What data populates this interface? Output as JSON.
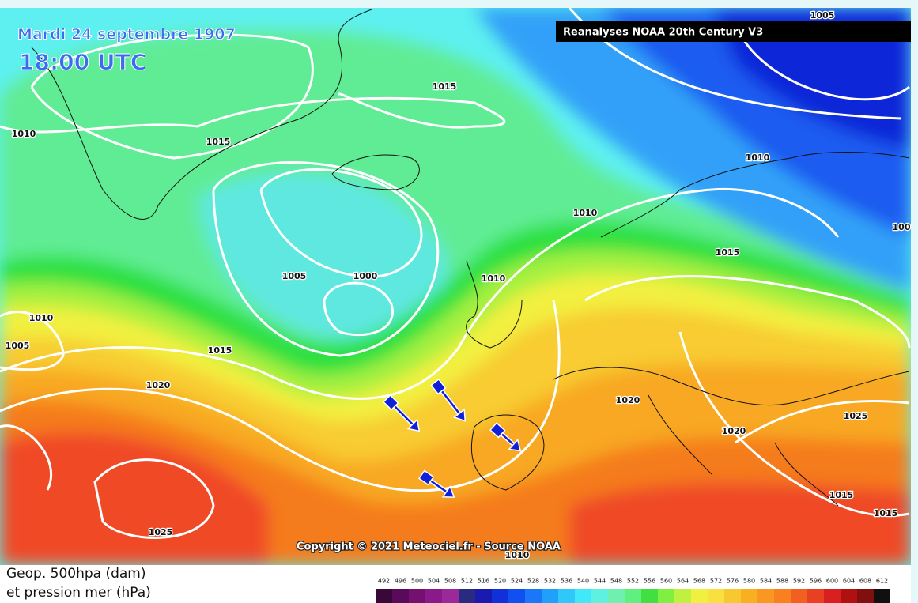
{
  "map": {
    "date": "Mardi 24 septembre 1907",
    "time": "18:00 UTC",
    "source_banner": "Reanalyses NOAA 20th Century V3",
    "copyright": "Copyright © 2021 Meteociel.fr - Source NOAA",
    "isobar_labels": [
      "1005",
      "1015",
      "1010",
      "1015",
      "1010",
      "1010",
      "1015",
      "1005",
      "1000",
      "1010",
      "1010",
      "1005",
      "1015",
      "1020",
      "1020",
      "1025",
      "1020",
      "1025",
      "1015",
      "1015",
      "1010",
      "100"
    ]
  },
  "legend": {
    "line1": "Geop. 500hpa (dam)",
    "line2": "et pression mer (hPa)",
    "scale": [
      492,
      496,
      500,
      504,
      508,
      512,
      516,
      520,
      524,
      528,
      532,
      536,
      540,
      544,
      548,
      552,
      556,
      560,
      564,
      568,
      572,
      576,
      580,
      584,
      588,
      592,
      596,
      600,
      604,
      608,
      612
    ]
  }
}
